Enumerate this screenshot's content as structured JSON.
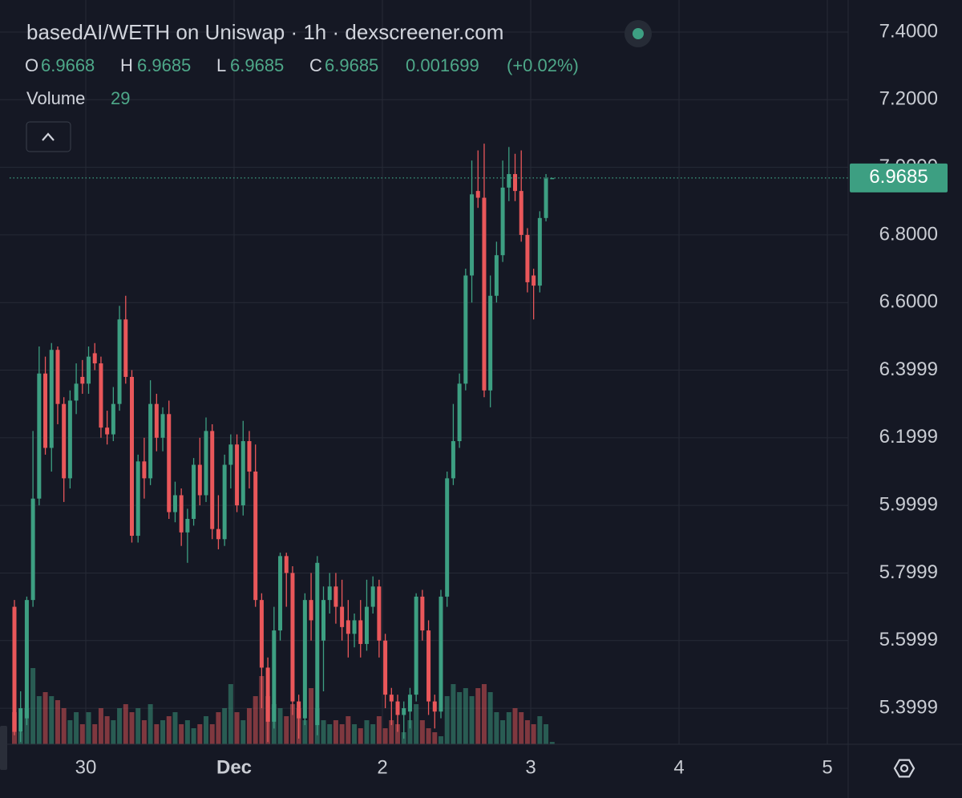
{
  "chart_data": {
    "type": "candlestick",
    "title": "basedAI/WETH on Uniswap · 1h · dexscreener.com",
    "ohlc_labels": [
      "O",
      "H",
      "L",
      "C"
    ],
    "change": 0.001699,
    "change_pct": "(+0.02%)",
    "volume_label": "Volume",
    "x_labels": [
      "30",
      "Dec",
      "2",
      "3",
      "4",
      "5"
    ],
    "ylim": [
      5.2933,
      7.4949
    ],
    "yticks": [
      {
        "value": 7.4,
        "label": "7.4000"
      },
      {
        "value": 7.2,
        "label": "7.2000"
      },
      {
        "value": 7.0,
        "label": "7.0000"
      },
      {
        "value": 6.8,
        "label": "6.8000"
      },
      {
        "value": 6.6,
        "label": "6.6000"
      },
      {
        "value": 6.3999,
        "label": "6.3999"
      },
      {
        "value": 6.1999,
        "label": "6.1999"
      },
      {
        "value": 5.9999,
        "label": "5.9999"
      },
      {
        "value": 5.7999,
        "label": "5.7999"
      },
      {
        "value": 5.5999,
        "label": "5.5999"
      },
      {
        "value": 5.3999,
        "label": "5.3999"
      }
    ],
    "grid": true,
    "up_color": "#3d9f82",
    "down_color": "#e9575a",
    "open": [
      5.7,
      5.33,
      5.37,
      5.72,
      6.02,
      6.39,
      6.17,
      6.46,
      6.3,
      6.08,
      6.31,
      6.38,
      6.36,
      6.45,
      6.42,
      6.23,
      6.21,
      6.3,
      6.55,
      6.38,
      5.91,
      6.13,
      6.08,
      6.3,
      6.2,
      6.27,
      5.98,
      6.03,
      5.92,
      5.96,
      6.12,
      6.03,
      6.22,
      5.93,
      5.9,
      6.12,
      6.18,
      6.0,
      6.19,
      6.1,
      5.72,
      5.52,
      5.36,
      5.63,
      5.85,
      5.8,
      5.42,
      5.37,
      5.72,
      5.35,
      5.6,
      5.72,
      5.76,
      5.7,
      5.66,
      5.62,
      5.66,
      5.59,
      5.7,
      5.76,
      5.6,
      5.44,
      5.42,
      5.38,
      5.39,
      5.44,
      5.73,
      5.63,
      5.42,
      5.39,
      5.73,
      6.08,
      6.19,
      6.36,
      6.68,
      6.93,
      6.91,
      6.34,
      6.62,
      6.74,
      6.94,
      6.98,
      6.93,
      6.8,
      6.68,
      6.65,
      6.85,
      6.9668
    ],
    "high": [
      5.72,
      5.45,
      5.73,
      6.22,
      6.47,
      6.44,
      6.48,
      6.47,
      6.32,
      6.34,
      6.42,
      6.43,
      6.47,
      6.48,
      6.44,
      6.28,
      6.35,
      6.59,
      6.62,
      6.4,
      6.15,
      6.2,
      6.37,
      6.33,
      6.29,
      6.31,
      6.07,
      6.05,
      5.99,
      6.14,
      6.2,
      6.26,
      6.24,
      6.03,
      6.15,
      6.21,
      6.21,
      6.25,
      6.22,
      6.18,
      5.74,
      5.55,
      5.7,
      5.86,
      5.86,
      5.82,
      5.44,
      5.74,
      5.8,
      5.85,
      5.76,
      5.8,
      5.8,
      5.78,
      5.72,
      5.68,
      5.72,
      5.78,
      5.79,
      5.78,
      5.62,
      5.46,
      5.44,
      5.42,
      5.46,
      5.74,
      5.75,
      5.66,
      5.44,
      5.75,
      6.1,
      6.3,
      6.39,
      6.7,
      7.02,
      7.05,
      7.07,
      6.68,
      6.78,
      7.02,
      7.06,
      7.04,
      7.05,
      6.82,
      6.7,
      6.87,
      6.98,
      6.9685
    ],
    "low": [
      5.32,
      5.3,
      5.35,
      5.7,
      6.0,
      6.15,
      6.1,
      6.24,
      6.01,
      6.05,
      6.27,
      6.33,
      6.33,
      6.4,
      6.2,
      6.18,
      6.19,
      6.28,
      6.36,
      5.89,
      5.89,
      6.02,
      6.06,
      6.16,
      6.16,
      5.96,
      5.95,
      5.88,
      5.83,
      5.94,
      6.0,
      6.01,
      5.9,
      5.87,
      5.88,
      6.05,
      5.98,
      5.97,
      6.05,
      5.7,
      5.4,
      5.3,
      5.34,
      5.6,
      5.7,
      5.38,
      5.31,
      5.35,
      5.6,
      5.32,
      5.45,
      5.68,
      5.65,
      5.6,
      5.55,
      5.58,
      5.55,
      5.57,
      5.68,
      5.55,
      5.4,
      5.35,
      5.33,
      5.31,
      5.34,
      5.42,
      5.6,
      5.38,
      5.34,
      5.37,
      5.7,
      6.06,
      6.17,
      6.34,
      6.6,
      6.88,
      6.32,
      6.29,
      6.6,
      6.72,
      6.9,
      6.9,
      6.78,
      6.63,
      6.55,
      6.63,
      6.84,
      6.9685
    ],
    "close": [
      5.33,
      5.4,
      5.72,
      6.02,
      6.39,
      6.17,
      6.46,
      6.3,
      6.08,
      6.31,
      6.36,
      6.36,
      6.44,
      6.42,
      6.23,
      6.21,
      6.3,
      6.55,
      6.38,
      5.91,
      6.13,
      6.08,
      6.3,
      6.2,
      6.27,
      5.98,
      6.03,
      5.92,
      5.96,
      6.12,
      6.03,
      6.22,
      5.93,
      5.9,
      6.12,
      6.18,
      6.0,
      6.19,
      6.1,
      5.72,
      5.52,
      5.36,
      5.63,
      5.85,
      5.8,
      5.42,
      5.37,
      5.72,
      5.66,
      5.83,
      5.72,
      5.76,
      5.7,
      5.64,
      5.62,
      5.66,
      5.59,
      5.7,
      5.76,
      5.6,
      5.44,
      5.42,
      5.38,
      5.4,
      5.44,
      5.73,
      5.63,
      5.42,
      5.39,
      5.73,
      6.08,
      6.19,
      6.36,
      6.68,
      6.92,
      6.91,
      6.34,
      6.62,
      6.74,
      6.94,
      6.98,
      6.93,
      6.8,
      6.66,
      6.65,
      6.85,
      6.9668,
      6.9685
    ],
    "volume": [
      400,
      150,
      450,
      950,
      600,
      650,
      600,
      550,
      450,
      300,
      400,
      250,
      400,
      250,
      450,
      350,
      300,
      450,
      500,
      400,
      450,
      300,
      500,
      250,
      300,
      350,
      400,
      250,
      300,
      200,
      250,
      350,
      250,
      400,
      450,
      750,
      400,
      300,
      450,
      600,
      850,
      600,
      500,
      450,
      350,
      500,
      450,
      300,
      700,
      450,
      300,
      250,
      300,
      250,
      350,
      250,
      200,
      300,
      250,
      350,
      200,
      300,
      250,
      150,
      300,
      500,
      300,
      200,
      150,
      100,
      600,
      750,
      650,
      700,
      600,
      700,
      750,
      650,
      400,
      300,
      400,
      450,
      400,
      300,
      250,
      350,
      250,
      29
    ]
  }
}
